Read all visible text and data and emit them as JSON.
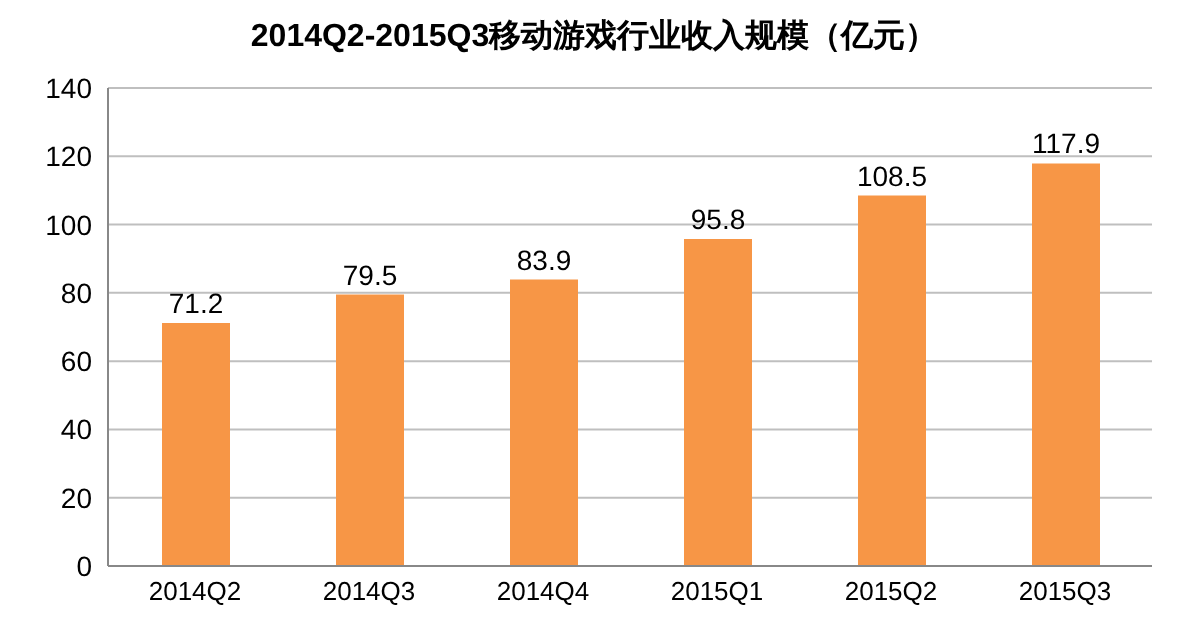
{
  "chart_data": {
    "type": "bar",
    "title": "2014Q2-2015Q3移动游戏行业收入规模（亿元）",
    "categories": [
      "2014Q2",
      "2014Q3",
      "2014Q4",
      "2015Q1",
      "2015Q2",
      "2015Q3"
    ],
    "values": [
      71.2,
      79.5,
      83.9,
      95.8,
      108.5,
      117.9
    ],
    "color": "#f79646",
    "ylim": [
      0,
      140
    ],
    "yticks": [
      0,
      20,
      40,
      60,
      80,
      100,
      120,
      140
    ],
    "grid": "y",
    "data_labels": true
  }
}
